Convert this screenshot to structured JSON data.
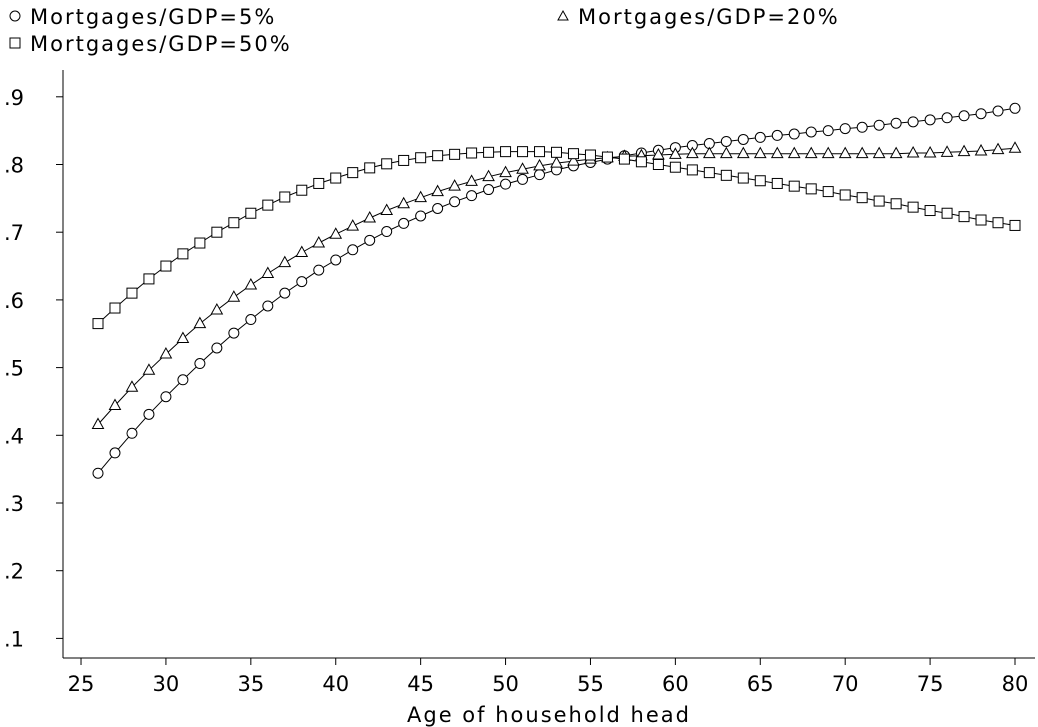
{
  "chart_data": {
    "type": "line",
    "title": "",
    "xlabel": "Age of household head",
    "ylabel": "",
    "xlim": [
      23,
      83
    ],
    "ylim": [
      0.05,
      0.95
    ],
    "xticks": [
      25,
      30,
      35,
      40,
      45,
      50,
      55,
      60,
      65,
      70,
      75,
      80
    ],
    "xtick_labels": [
      "25",
      "30",
      "35",
      "40",
      "45",
      "50",
      "55",
      "60",
      "65",
      "70",
      "75",
      "80"
    ],
    "yticks": [
      0.1,
      0.2,
      0.3,
      0.4,
      0.5,
      0.6,
      0.7,
      0.8,
      0.9
    ],
    "ytick_labels": [
      ".1",
      ".2",
      ".3",
      ".4",
      ".5",
      ".6",
      ".7",
      ".8",
      ".9"
    ],
    "grid": false,
    "legend_position": "top",
    "x": [
      26,
      27,
      28,
      29,
      30,
      31,
      32,
      33,
      34,
      35,
      36,
      37,
      38,
      39,
      40,
      41,
      42,
      43,
      44,
      45,
      46,
      47,
      48,
      49,
      50,
      51,
      52,
      53,
      54,
      55,
      56,
      57,
      58,
      59,
      60,
      61,
      62,
      63,
      64,
      65,
      66,
      67,
      68,
      69,
      70,
      71,
      72,
      73,
      74,
      75,
      76,
      77,
      78,
      79,
      80
    ],
    "series": [
      {
        "name": "Mortgages/GDP=5%",
        "marker": "circle",
        "values": [
          0.344,
          0.374,
          0.403,
          0.431,
          0.457,
          0.482,
          0.506,
          0.529,
          0.551,
          0.571,
          0.591,
          0.61,
          0.627,
          0.644,
          0.659,
          0.674,
          0.688,
          0.701,
          0.713,
          0.724,
          0.735,
          0.745,
          0.754,
          0.763,
          0.771,
          0.778,
          0.785,
          0.792,
          0.798,
          0.803,
          0.808,
          0.813,
          0.817,
          0.821,
          0.825,
          0.828,
          0.831,
          0.834,
          0.837,
          0.84,
          0.843,
          0.845,
          0.848,
          0.85,
          0.853,
          0.855,
          0.858,
          0.861,
          0.863,
          0.866,
          0.869,
          0.872,
          0.875,
          0.879,
          0.883
        ]
      },
      {
        "name": "Mortgages/GDP=20%",
        "marker": "triangle",
        "values": [
          0.416,
          0.444,
          0.471,
          0.496,
          0.52,
          0.543,
          0.565,
          0.585,
          0.604,
          0.622,
          0.639,
          0.655,
          0.67,
          0.684,
          0.697,
          0.709,
          0.721,
          0.732,
          0.742,
          0.751,
          0.76,
          0.768,
          0.775,
          0.782,
          0.788,
          0.793,
          0.798,
          0.802,
          0.805,
          0.808,
          0.81,
          0.812,
          0.813,
          0.814,
          0.815,
          0.816,
          0.816,
          0.816,
          0.816,
          0.816,
          0.816,
          0.816,
          0.816,
          0.816,
          0.816,
          0.816,
          0.816,
          0.816,
          0.817,
          0.817,
          0.818,
          0.819,
          0.82,
          0.822,
          0.824
        ]
      },
      {
        "name": "Mortgages/GDP=50%",
        "marker": "square",
        "values": [
          0.565,
          0.588,
          0.61,
          0.631,
          0.65,
          0.668,
          0.684,
          0.7,
          0.714,
          0.728,
          0.74,
          0.752,
          0.762,
          0.772,
          0.78,
          0.788,
          0.795,
          0.801,
          0.806,
          0.81,
          0.813,
          0.815,
          0.817,
          0.818,
          0.819,
          0.819,
          0.819,
          0.818,
          0.816,
          0.814,
          0.811,
          0.808,
          0.804,
          0.8,
          0.796,
          0.792,
          0.788,
          0.784,
          0.78,
          0.776,
          0.772,
          0.768,
          0.764,
          0.76,
          0.755,
          0.751,
          0.746,
          0.742,
          0.737,
          0.732,
          0.728,
          0.723,
          0.718,
          0.714,
          0.71
        ]
      }
    ]
  }
}
